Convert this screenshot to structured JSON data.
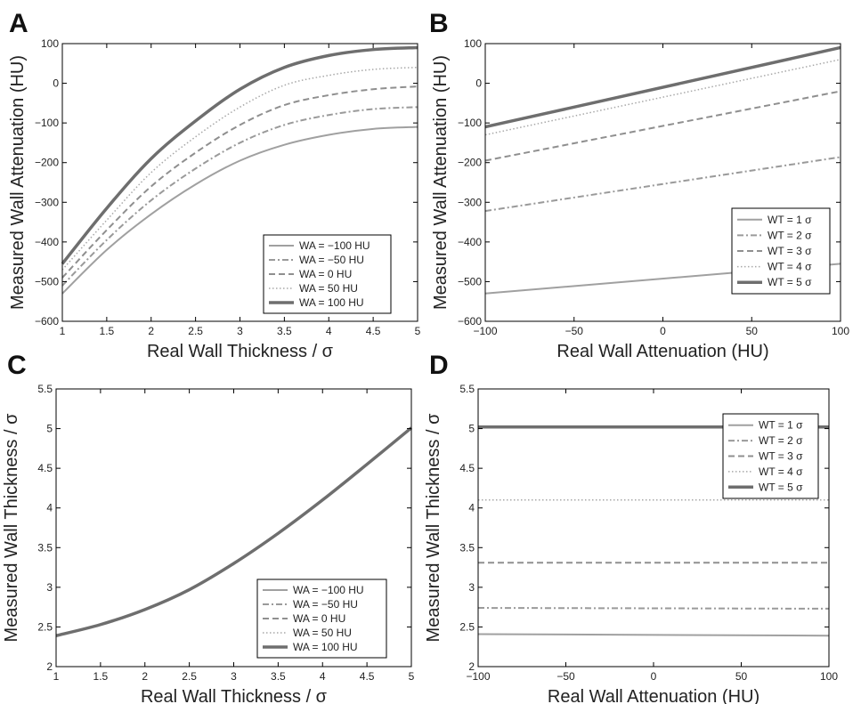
{
  "chart_data": [
    {
      "panel": "A",
      "type": "line",
      "xlabel": "Real Wall Thickness / σ",
      "ylabel": "Measured Wall Attenuation (HU)",
      "xlim": [
        1,
        5
      ],
      "ylim": [
        -600,
        100
      ],
      "xticks": [
        1,
        1.5,
        2,
        2.5,
        3,
        3.5,
        4,
        4.5,
        5
      ],
      "yticks": [
        -600,
        -500,
        -400,
        -300,
        -200,
        -100,
        0,
        100
      ],
      "xtick_labels": [
        "1",
        "1.5",
        "2",
        "2.5",
        "3",
        "3.5",
        "4",
        "4.5",
        "5"
      ],
      "ytick_labels": [
        "−600",
        "−500",
        "−400",
        "−300",
        "−200",
        "−100",
        "0",
        "100"
      ],
      "legend_position": "bottom-right",
      "grid": false,
      "series": [
        {
          "name": "WA = −100 HU",
          "style": "solid",
          "color": "#a0a0a0",
          "width": 2,
          "x": [
            1,
            1.5,
            2,
            2.5,
            3,
            3.5,
            4,
            4.5,
            5
          ],
          "y": [
            -530,
            -420,
            -330,
            -255,
            -195,
            -155,
            -130,
            -115,
            -110
          ]
        },
        {
          "name": "WA = −50 HU",
          "style": "dashdot",
          "color": "#9a9a9a",
          "width": 2,
          "x": [
            1,
            1.5,
            2,
            2.5,
            3,
            3.5,
            4,
            4.5,
            5
          ],
          "y": [
            -510,
            -395,
            -295,
            -215,
            -150,
            -105,
            -80,
            -65,
            -60
          ]
        },
        {
          "name": "WA = 0 HU",
          "style": "dashed",
          "color": "#8f8f8f",
          "width": 2,
          "x": [
            1,
            1.5,
            2,
            2.5,
            3,
            3.5,
            4,
            4.5,
            5
          ],
          "y": [
            -490,
            -370,
            -260,
            -175,
            -105,
            -55,
            -30,
            -15,
            -8
          ]
        },
        {
          "name": "WA = 50 HU",
          "style": "dotted",
          "color": "#a8a8a8",
          "width": 1.5,
          "x": [
            1,
            1.5,
            2,
            2.5,
            3,
            3.5,
            4,
            4.5,
            5
          ],
          "y": [
            -470,
            -345,
            -225,
            -135,
            -60,
            -5,
            20,
            35,
            40
          ]
        },
        {
          "name": "WA = 100 HU",
          "style": "solid",
          "color": "#6e6e6e",
          "width": 3.5,
          "x": [
            1,
            1.5,
            2,
            2.5,
            3,
            3.5,
            4,
            4.5,
            5
          ],
          "y": [
            -455,
            -315,
            -190,
            -95,
            -15,
            40,
            70,
            85,
            90
          ]
        }
      ]
    },
    {
      "panel": "B",
      "type": "line",
      "xlabel": "Real Wall Attenuation (HU)",
      "ylabel": "Measured Wall Attenuation (HU)",
      "xlim": [
        -100,
        100
      ],
      "ylim": [
        -600,
        100
      ],
      "xticks": [
        -100,
        -50,
        0,
        50,
        100
      ],
      "yticks": [
        -600,
        -500,
        -400,
        -300,
        -200,
        -100,
        0,
        100
      ],
      "xtick_labels": [
        "−100",
        "−50",
        "0",
        "50",
        "100"
      ],
      "ytick_labels": [
        "−600",
        "−500",
        "−400",
        "−300",
        "−200",
        "−100",
        "0",
        "100"
      ],
      "legend_position": "bottom-right",
      "grid": false,
      "series": [
        {
          "name": "WT = 1 σ",
          "style": "solid",
          "color": "#a0a0a0",
          "width": 2,
          "x": [
            -100,
            100
          ],
          "y": [
            -530,
            -455
          ]
        },
        {
          "name": "WT = 2 σ",
          "style": "dashdot",
          "color": "#9a9a9a",
          "width": 2,
          "x": [
            -100,
            100
          ],
          "y": [
            -322,
            -186
          ]
        },
        {
          "name": "WT = 3 σ",
          "style": "dashed",
          "color": "#8f8f8f",
          "width": 2,
          "x": [
            -100,
            100
          ],
          "y": [
            -195,
            -20
          ]
        },
        {
          "name": "WT = 4 σ",
          "style": "dotted",
          "color": "#a8a8a8",
          "width": 1.5,
          "x": [
            -100,
            100
          ],
          "y": [
            -130,
            60
          ]
        },
        {
          "name": "WT = 5 σ",
          "style": "solid",
          "color": "#6e6e6e",
          "width": 3.5,
          "x": [
            -100,
            100
          ],
          "y": [
            -110,
            90
          ]
        }
      ]
    },
    {
      "panel": "C",
      "type": "line",
      "xlabel": "Real Wall Thickness / σ",
      "ylabel": "Measured Wall Thickness / σ",
      "xlim": [
        1,
        5
      ],
      "ylim": [
        2,
        5.5
      ],
      "xticks": [
        1,
        1.5,
        2,
        2.5,
        3,
        3.5,
        4,
        4.5,
        5
      ],
      "yticks": [
        2,
        2.5,
        3,
        3.5,
        4,
        4.5,
        5,
        5.5
      ],
      "xtick_labels": [
        "1",
        "1.5",
        "2",
        "2.5",
        "3",
        "3.5",
        "4",
        "4.5",
        "5"
      ],
      "ytick_labels": [
        "2",
        "2.5",
        "3",
        "3.5",
        "4",
        "4.5",
        "5",
        "5.5"
      ],
      "legend_position": "bottom-right",
      "grid": false,
      "series": [
        {
          "name": "WA = −100 HU",
          "style": "solid",
          "color": "#a0a0a0",
          "width": 2,
          "x": [
            1,
            1.5,
            2,
            2.5,
            3,
            3.5,
            4,
            4.5,
            5
          ],
          "y": [
            2.39,
            2.53,
            2.72,
            2.97,
            3.3,
            3.68,
            4.1,
            4.55,
            5.01
          ]
        },
        {
          "name": "WA = −50 HU",
          "style": "dashdot",
          "color": "#9a9a9a",
          "width": 2,
          "x": [
            1,
            1.5,
            2,
            2.5,
            3,
            3.5,
            4,
            4.5,
            5
          ],
          "y": [
            2.39,
            2.53,
            2.72,
            2.97,
            3.3,
            3.68,
            4.1,
            4.55,
            5.01
          ]
        },
        {
          "name": "WA = 0 HU",
          "style": "dashed",
          "color": "#8f8f8f",
          "width": 2,
          "x": [
            1,
            1.5,
            2,
            2.5,
            3,
            3.5,
            4,
            4.5,
            5
          ],
          "y": [
            2.39,
            2.53,
            2.72,
            2.97,
            3.3,
            3.68,
            4.1,
            4.55,
            5.01
          ]
        },
        {
          "name": "WA = 50 HU",
          "style": "dotted",
          "color": "#a8a8a8",
          "width": 1.5,
          "x": [
            1,
            1.5,
            2,
            2.5,
            3,
            3.5,
            4,
            4.5,
            5
          ],
          "y": [
            2.39,
            2.53,
            2.72,
            2.97,
            3.3,
            3.68,
            4.1,
            4.55,
            5.01
          ]
        },
        {
          "name": "WA = 100 HU",
          "style": "solid",
          "color": "#6e6e6e",
          "width": 3.5,
          "x": [
            1,
            1.5,
            2,
            2.5,
            3,
            3.5,
            4,
            4.5,
            5
          ],
          "y": [
            2.39,
            2.53,
            2.72,
            2.97,
            3.3,
            3.68,
            4.1,
            4.55,
            5.01
          ]
        }
      ]
    },
    {
      "panel": "D",
      "type": "line",
      "xlabel": "Real Wall Attenuation (HU)",
      "ylabel": "Measured Wall Thickness / σ",
      "xlim": [
        -100,
        100
      ],
      "ylim": [
        2,
        5.5
      ],
      "xticks": [
        -100,
        -50,
        0,
        50,
        100
      ],
      "yticks": [
        2,
        2.5,
        3,
        3.5,
        4,
        4.5,
        5,
        5.5
      ],
      "xtick_labels": [
        "−100",
        "−50",
        "0",
        "50",
        "100"
      ],
      "ytick_labels": [
        "2",
        "2.5",
        "3",
        "3.5",
        "4",
        "4.5",
        "5",
        "5.5"
      ],
      "legend_position": "top-right",
      "grid": false,
      "series": [
        {
          "name": "WT = 1 σ",
          "style": "solid",
          "color": "#a0a0a0",
          "width": 2,
          "x": [
            -100,
            100
          ],
          "y": [
            2.41,
            2.39
          ]
        },
        {
          "name": "WT = 2 σ",
          "style": "dashdot",
          "color": "#9a9a9a",
          "width": 2,
          "x": [
            -100,
            100
          ],
          "y": [
            2.74,
            2.73
          ]
        },
        {
          "name": "WT = 3 σ",
          "style": "dashed",
          "color": "#8f8f8f",
          "width": 2,
          "x": [
            -100,
            100
          ],
          "y": [
            3.31,
            3.31
          ]
        },
        {
          "name": "WT = 4 σ",
          "style": "dotted",
          "color": "#a8a8a8",
          "width": 1.5,
          "x": [
            -100,
            100
          ],
          "y": [
            4.1,
            4.1
          ]
        },
        {
          "name": "WT = 5 σ",
          "style": "solid",
          "color": "#6e6e6e",
          "width": 3.5,
          "x": [
            -100,
            100
          ],
          "y": [
            5.02,
            5.02
          ]
        }
      ]
    }
  ]
}
